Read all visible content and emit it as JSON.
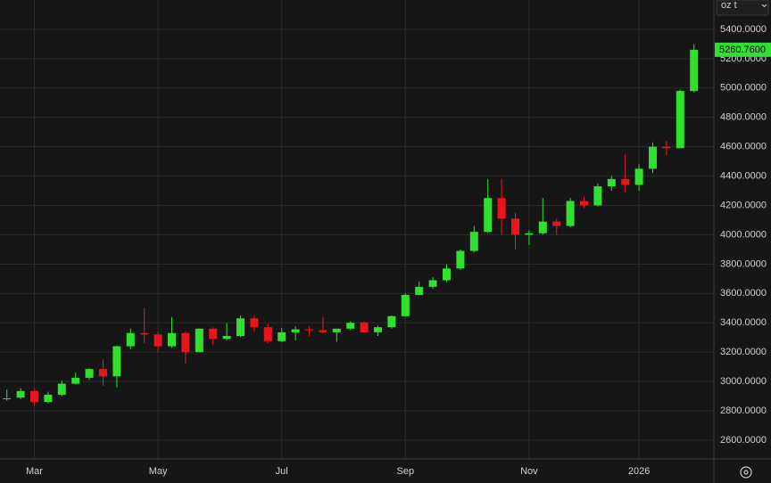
{
  "chart_data": {
    "type": "candlestick",
    "unit_selector": "oz t",
    "categories": [
      null,
      null,
      "Mar",
      null,
      null,
      null,
      null,
      null,
      null,
      null,
      null,
      "May",
      null,
      null,
      null,
      null,
      null,
      null,
      null,
      null,
      "Jul",
      null,
      null,
      null,
      null,
      null,
      null,
      null,
      null,
      "Sep",
      null,
      null,
      null,
      null,
      null,
      null,
      null,
      null,
      "Nov",
      null,
      null,
      null,
      null,
      null,
      null,
      null,
      "2026",
      null,
      null,
      null,
      null
    ],
    "open": [
      2880,
      2890,
      2935,
      2860,
      2910,
      2985,
      3025,
      3085,
      3035,
      3240,
      3330,
      3320,
      3240,
      3330,
      3200,
      3360,
      3290,
      3310,
      3430,
      3370,
      3275,
      3335,
      3355,
      3350,
      3335,
      3360,
      3400,
      3335,
      3370,
      3445,
      3590,
      3645,
      3690,
      3770,
      3890,
      4020,
      4250,
      4110,
      4000,
      4010,
      4090,
      4060,
      4230,
      4200,
      4330,
      4380,
      4340,
      4450,
      4600,
      4590,
      4980
    ],
    "high": [
      2945,
      2955,
      2950,
      2930,
      3005,
      3060,
      3090,
      3150,
      3245,
      3360,
      3500,
      3340,
      3440,
      3340,
      3360,
      3370,
      3400,
      3450,
      3450,
      3395,
      3365,
      3375,
      3375,
      3440,
      3360,
      3410,
      3410,
      3380,
      3450,
      3600,
      3680,
      3710,
      3800,
      3900,
      4060,
      4380,
      4380,
      4150,
      4030,
      4250,
      4110,
      4250,
      4260,
      4350,
      4400,
      4550,
      4480,
      4630,
      4640,
      4990,
      5300
    ],
    "low": [
      2870,
      2880,
      2835,
      2850,
      2900,
      2980,
      3010,
      2970,
      2960,
      3220,
      3260,
      3200,
      3230,
      3120,
      3200,
      3250,
      3280,
      3300,
      3340,
      3260,
      3270,
      3280,
      3310,
      3330,
      3270,
      3350,
      3330,
      3310,
      3360,
      3440,
      3590,
      3630,
      3680,
      3760,
      3880,
      4010,
      4000,
      3900,
      3930,
      4000,
      4000,
      4050,
      4180,
      4190,
      4300,
      4290,
      4300,
      4420,
      4540,
      4590,
      4970
    ],
    "close": [
      2885,
      2935,
      2860,
      2910,
      2985,
      3025,
      3085,
      3035,
      3240,
      3330,
      3320,
      3240,
      3330,
      3200,
      3360,
      3290,
      3310,
      3430,
      3370,
      3275,
      3335,
      3355,
      3350,
      3335,
      3360,
      3400,
      3335,
      3370,
      3445,
      3590,
      3645,
      3690,
      3770,
      3890,
      4020,
      4250,
      4110,
      4000,
      4010,
      4090,
      4060,
      4230,
      4200,
      4330,
      4380,
      4340,
      4450,
      4600,
      4590,
      4980,
      5260.76
    ],
    "up_color": "#2fe02f",
    "down_color": "#e8161c",
    "ylim": [
      2472,
      5600
    ],
    "yticks": [
      {
        "value": 2600,
        "label": "2600.0000"
      },
      {
        "value": 2800,
        "label": "2800.0000"
      },
      {
        "value": 3000,
        "label": "3000.0000"
      },
      {
        "value": 3200,
        "label": "3200.0000"
      },
      {
        "value": 3400,
        "label": "3400.0000"
      },
      {
        "value": 3600,
        "label": "3600.0000"
      },
      {
        "value": 3800,
        "label": "3800.0000"
      },
      {
        "value": 4000,
        "label": "4000.0000"
      },
      {
        "value": 4200,
        "label": "4200.0000"
      },
      {
        "value": 4400,
        "label": "4400.0000"
      },
      {
        "value": 4600,
        "label": "4600.0000"
      },
      {
        "value": 4800,
        "label": "4800.0000"
      },
      {
        "value": 5000,
        "label": "5000.0000"
      },
      {
        "value": 5200,
        "label": "5200.0000"
      },
      {
        "value": 5400,
        "label": "5400.0000"
      }
    ],
    "last_price": {
      "value": 5260.76,
      "label": "5260.7600"
    },
    "grid": true
  }
}
